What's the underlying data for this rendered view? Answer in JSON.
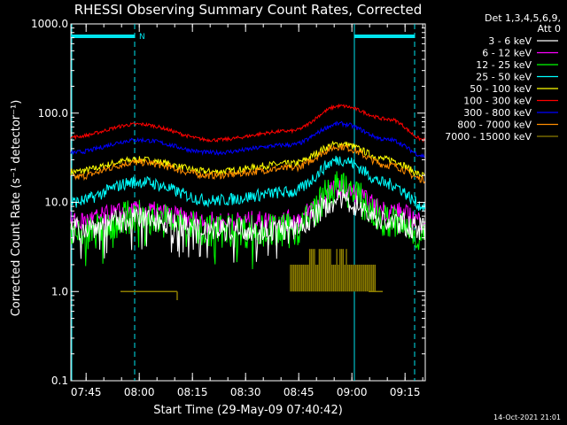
{
  "chart_data": {
    "type": "line",
    "title": "RHESSI Observing Summary Count Rates, Corrected",
    "xlabel": "Start Time (29-May-09 07:40:42)",
    "ylabel": "Corrected Count Rate (s⁻¹ detector⁻¹)",
    "y_scale": "log",
    "ylim": [
      0.1,
      1000
    ],
    "y_ticks": [
      "0.1",
      "1.0",
      "10.0",
      "100.0",
      "1000.0"
    ],
    "x_range_min": [
      0,
      100
    ],
    "x_ticks": [
      {
        "label": "07:45",
        "min": 4.3
      },
      {
        "label": "08:00",
        "min": 19.3
      },
      {
        "label": "08:15",
        "min": 34.3
      },
      {
        "label": "08:30",
        "min": 49.3
      },
      {
        "label": "08:45",
        "min": 64.3
      },
      {
        "label": "09:00",
        "min": 79.3
      },
      {
        "label": "09:15",
        "min": 94.3
      }
    ],
    "legend_header": [
      "Det 1,3,4,5,6,9,",
      "Att 0"
    ],
    "legend_position": "right",
    "grid": false,
    "markers": {
      "n_label": "N",
      "dashed_lines_min": [
        18,
        97
      ],
      "solid_lines_min": [
        80
      ],
      "bars": [
        {
          "from": 0,
          "to": 18
        },
        {
          "from": 80,
          "to": 97
        }
      ]
    },
    "series": [
      {
        "name": "3 - 6 keV",
        "color": "#ffffff",
        "min_points": [
          [
            0,
            5.0
          ],
          [
            19,
            6.5
          ],
          [
            40,
            5.0
          ],
          [
            62,
            5.0
          ],
          [
            76,
            10.5
          ],
          [
            90,
            6.0
          ],
          [
            100,
            5.0
          ]
        ]
      },
      {
        "name": "6 - 12 keV",
        "color": "#ff00ff",
        "min_points": [
          [
            0,
            6.0
          ],
          [
            19,
            8.0
          ],
          [
            40,
            6.0
          ],
          [
            62,
            6.2
          ],
          [
            76,
            14.0
          ],
          [
            90,
            8.0
          ],
          [
            100,
            6.2
          ]
        ]
      },
      {
        "name": "12 - 25 keV",
        "color": "#00ff00",
        "min_points": [
          [
            0,
            4.0
          ],
          [
            19,
            7.0
          ],
          [
            40,
            4.8
          ],
          [
            62,
            4.8
          ],
          [
            76,
            14.5
          ],
          [
            90,
            6.0
          ],
          [
            100,
            4.2
          ]
        ]
      },
      {
        "name": "25 - 50 keV",
        "color": "#00ffff",
        "min_points": [
          [
            0,
            10.0
          ],
          [
            19,
            17.0
          ],
          [
            40,
            10.5
          ],
          [
            62,
            13.0
          ],
          [
            76,
            30.0
          ],
          [
            90,
            16.0
          ],
          [
            100,
            9.0
          ]
        ]
      },
      {
        "name": "50 - 100 keV",
        "color": "#ffff00",
        "min_points": [
          [
            0,
            22.0
          ],
          [
            19,
            30.0
          ],
          [
            40,
            22.0
          ],
          [
            62,
            27.0
          ],
          [
            76,
            45.0
          ],
          [
            90,
            30.0
          ],
          [
            100,
            20.0
          ]
        ]
      },
      {
        "name": "100 - 300 keV",
        "color": "#ff0000",
        "min_points": [
          [
            0,
            54.0
          ],
          [
            19,
            75.0
          ],
          [
            40,
            50.0
          ],
          [
            62,
            63.0
          ],
          [
            76,
            120.0
          ],
          [
            90,
            85.0
          ],
          [
            100,
            50.0
          ]
        ]
      },
      {
        "name": "300 - 800 keV",
        "color": "#0000ff",
        "min_points": [
          [
            0,
            36.0
          ],
          [
            19,
            50.0
          ],
          [
            40,
            36.0
          ],
          [
            62,
            44.0
          ],
          [
            76,
            76.0
          ],
          [
            90,
            50.0
          ],
          [
            100,
            33.0
          ]
        ]
      },
      {
        "name": "800 - 7000 keV",
        "color": "#ff8c00",
        "min_points": [
          [
            0,
            19.0
          ],
          [
            19,
            28.0
          ],
          [
            40,
            20.0
          ],
          [
            62,
            24.0
          ],
          [
            76,
            42.0
          ],
          [
            90,
            26.0
          ],
          [
            100,
            18.0
          ]
        ]
      },
      {
        "name": "7000 - 15000 keV",
        "color": "#8c7d00",
        "min_points": [
          [
            14,
            1.0
          ],
          [
            30,
            1.0
          ],
          [
            62,
            1.0
          ],
          [
            76,
            2.5
          ],
          [
            82,
            1.0
          ],
          [
            88,
            1.0
          ]
        ]
      }
    ]
  },
  "timestamp": "14-Oct-2021 21:01"
}
